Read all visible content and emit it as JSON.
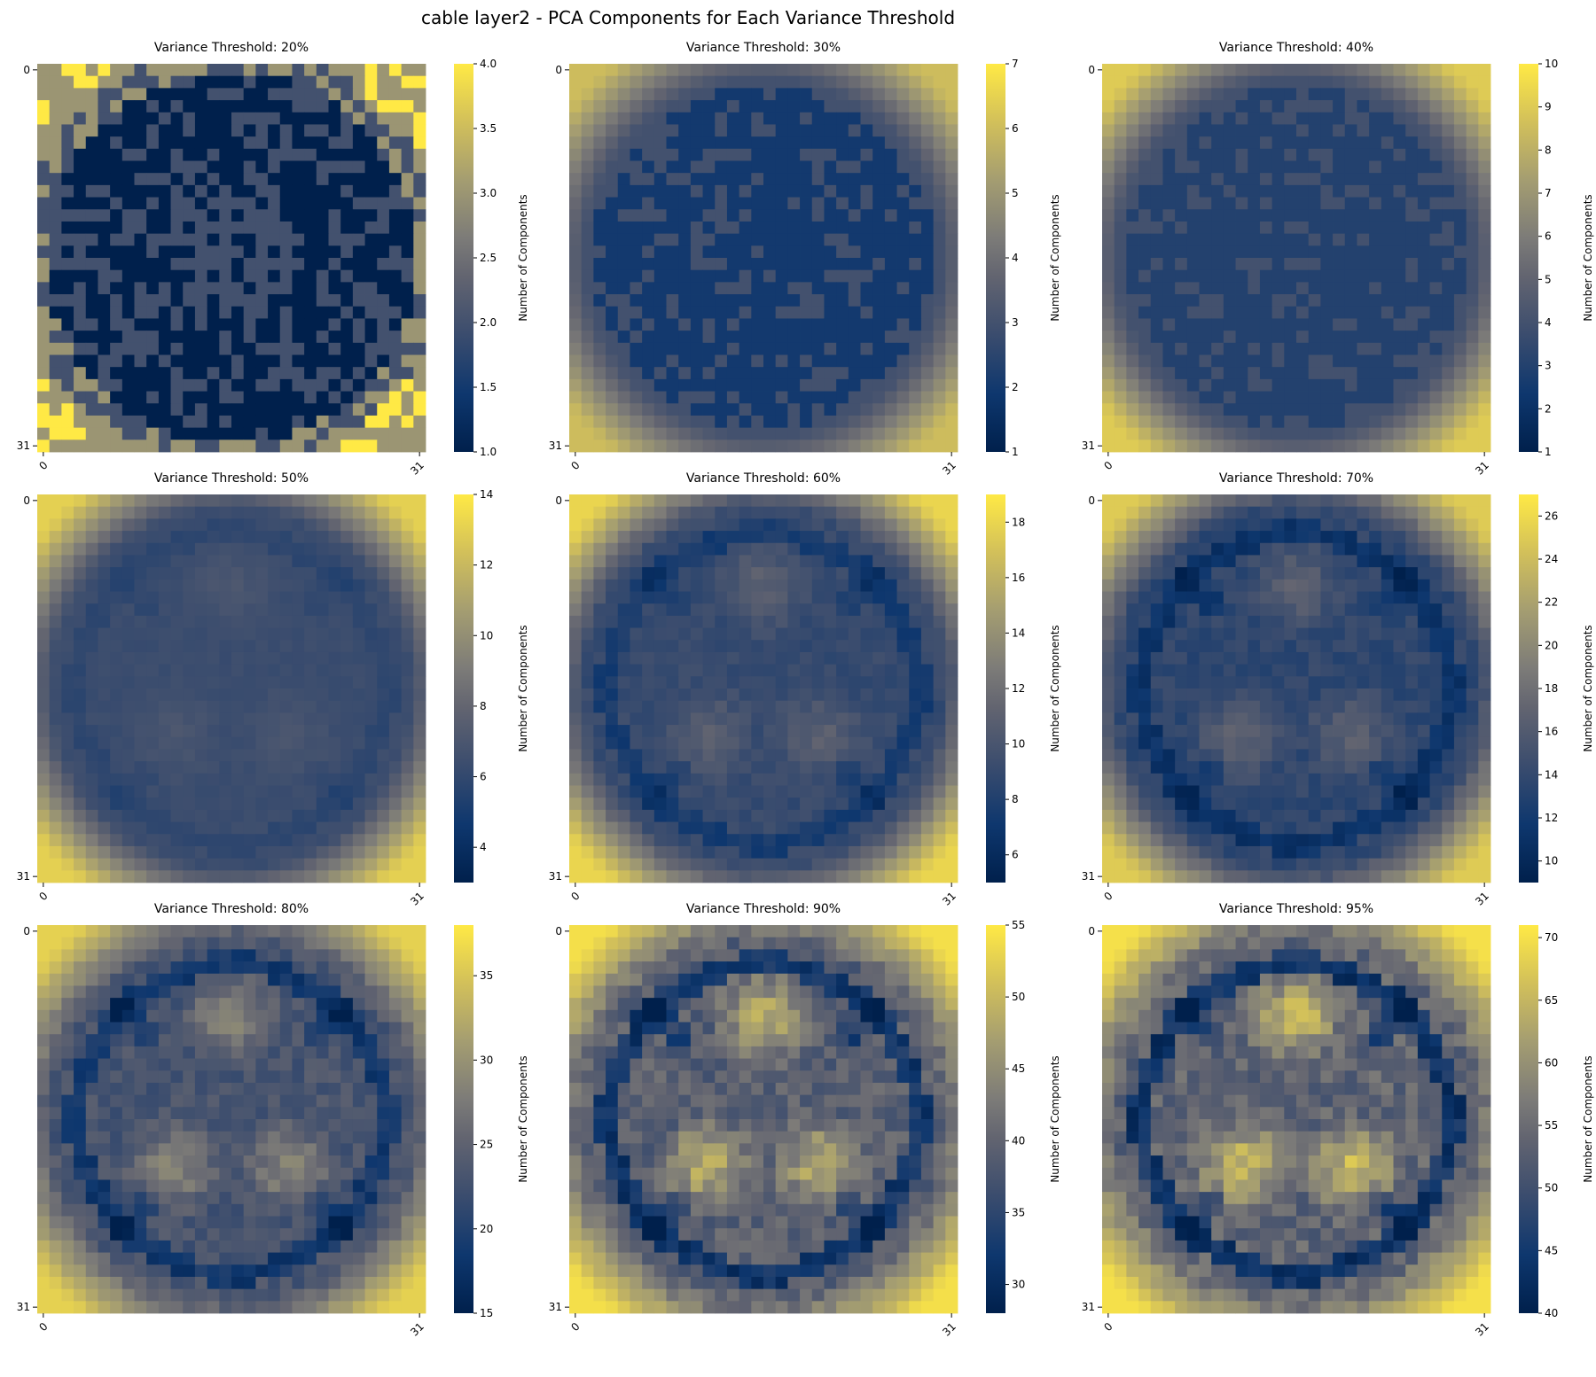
{
  "title": "cable layer2 - PCA Components for Each Variance Threshold",
  "colormap": "cividis",
  "colors": {
    "low": "#00204c",
    "mid": "#7c7b78",
    "high": "#ffe945"
  },
  "chart_data": [
    {
      "type": "heatmap",
      "title": "Variance Threshold: 20%",
      "grid": [
        32,
        32
      ],
      "xticks": [
        "0",
        "31"
      ],
      "yticks": [
        "0",
        "31"
      ],
      "colorbar": {
        "label": "Number of Components",
        "range": [
          1,
          4
        ],
        "ticks": [
          "1.0",
          "1.5",
          "2.0",
          "2.5",
          "3.0",
          "3.5",
          "4.0"
        ]
      },
      "pattern": "binary",
      "corner_value": 3.5,
      "ring_value": 1.0,
      "center_value": 2.0
    },
    {
      "type": "heatmap",
      "title": "Variance Threshold: 30%",
      "grid": [
        32,
        32
      ],
      "xticks": [
        "0",
        "31"
      ],
      "yticks": [
        "0",
        "31"
      ],
      "colorbar": {
        "label": "Number of Components",
        "range": [
          1,
          7
        ],
        "ticks": [
          "1",
          "2",
          "3",
          "4",
          "5",
          "6",
          "7"
        ]
      },
      "pattern": "disc",
      "corner_value": 6,
      "ring_value": 2,
      "center_value": 2
    },
    {
      "type": "heatmap",
      "title": "Variance Threshold: 40%",
      "grid": [
        32,
        32
      ],
      "xticks": [
        "0",
        "31"
      ],
      "yticks": [
        "0",
        "31"
      ],
      "colorbar": {
        "label": "Number of Components",
        "range": [
          1,
          10
        ],
        "ticks": [
          "1",
          "2",
          "3",
          "4",
          "5",
          "6",
          "7",
          "8",
          "9",
          "10"
        ]
      },
      "pattern": "disc",
      "corner_value": 9,
      "ring_value": 3,
      "center_value": 3
    },
    {
      "type": "heatmap",
      "title": "Variance Threshold: 50%",
      "grid": [
        32,
        32
      ],
      "xticks": [
        "0",
        "31"
      ],
      "yticks": [
        "0",
        "31"
      ],
      "colorbar": {
        "label": "Number of Components",
        "range": [
          3,
          14
        ],
        "ticks": [
          "4",
          "6",
          "8",
          "10",
          "12",
          "14"
        ]
      },
      "pattern": "rings",
      "corner_value": 13,
      "ring_value": 6,
      "center_value": 7
    },
    {
      "type": "heatmap",
      "title": "Variance Threshold: 60%",
      "grid": [
        32,
        32
      ],
      "xticks": [
        "0",
        "31"
      ],
      "yticks": [
        "0",
        "31"
      ],
      "colorbar": {
        "label": "Number of Components",
        "range": [
          5,
          19
        ],
        "ticks": [
          "6",
          "8",
          "10",
          "12",
          "14",
          "16",
          "18"
        ]
      },
      "pattern": "rings",
      "corner_value": 18,
      "ring_value": 8,
      "center_value": 11
    },
    {
      "type": "heatmap",
      "title": "Variance Threshold: 70%",
      "grid": [
        32,
        32
      ],
      "xticks": [
        "0",
        "31"
      ],
      "yticks": [
        "0",
        "31"
      ],
      "colorbar": {
        "label": "Number of Components",
        "range": [
          9,
          27
        ],
        "ticks": [
          "10",
          "12",
          "14",
          "16",
          "18",
          "20",
          "22",
          "24",
          "26"
        ]
      },
      "pattern": "rings",
      "corner_value": 25,
      "ring_value": 12,
      "center_value": 17
    },
    {
      "type": "heatmap",
      "title": "Variance Threshold: 80%",
      "grid": [
        32,
        32
      ],
      "xticks": [
        "0",
        "31"
      ],
      "yticks": [
        "0",
        "31"
      ],
      "colorbar": {
        "label": "Number of Components",
        "range": [
          15,
          38
        ],
        "ticks": [
          "15",
          "20",
          "25",
          "30",
          "35"
        ]
      },
      "pattern": "rings",
      "corner_value": 36,
      "ring_value": 20,
      "center_value": 29
    },
    {
      "type": "heatmap",
      "title": "Variance Threshold: 90%",
      "grid": [
        32,
        32
      ],
      "xticks": [
        "0",
        "31"
      ],
      "yticks": [
        "0",
        "31"
      ],
      "colorbar": {
        "label": "Number of Components",
        "range": [
          28,
          55
        ],
        "ticks": [
          "30",
          "35",
          "40",
          "45",
          "50",
          "55"
        ]
      },
      "pattern": "rings",
      "corner_value": 54,
      "ring_value": 34,
      "center_value": 49
    },
    {
      "type": "heatmap",
      "title": "Variance Threshold: 95%",
      "grid": [
        32,
        32
      ],
      "xticks": [
        "0",
        "31"
      ],
      "yticks": [
        "0",
        "31"
      ],
      "colorbar": {
        "label": "Number of Components",
        "range": [
          40,
          71
        ],
        "ticks": [
          "40",
          "45",
          "50",
          "55",
          "60",
          "65",
          "70"
        ]
      },
      "pattern": "rings",
      "corner_value": 70,
      "ring_value": 47,
      "center_value": 66
    }
  ]
}
